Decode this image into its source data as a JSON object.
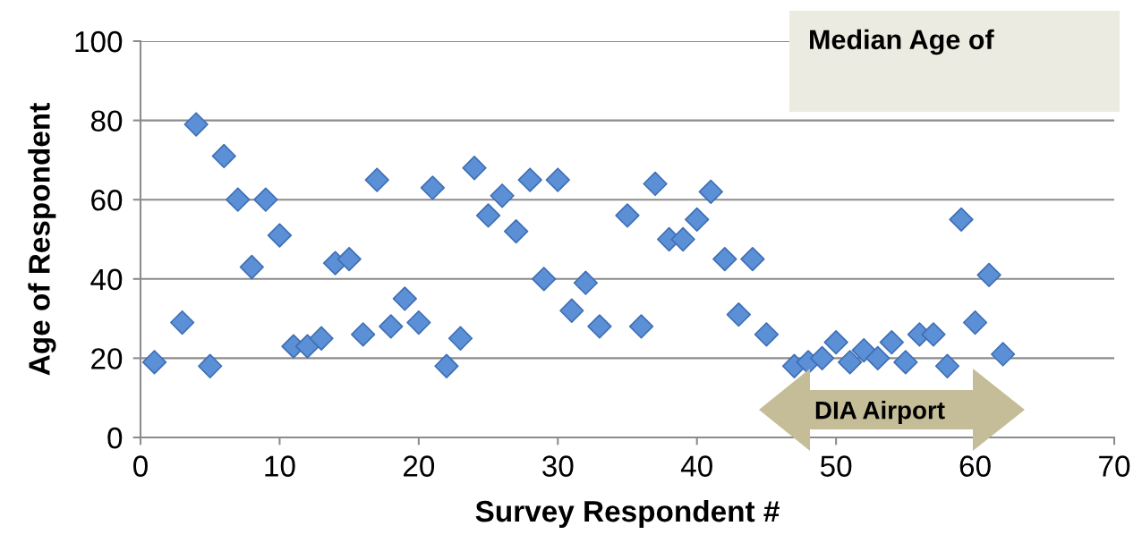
{
  "chart_data": {
    "type": "scatter",
    "xlabel": "Survey Respondent #",
    "ylabel": "Age of Respondent",
    "x": [
      1,
      3,
      4,
      5,
      6,
      7,
      8,
      9,
      10,
      11,
      12,
      13,
      14,
      15,
      16,
      17,
      18,
      19,
      20,
      21,
      22,
      23,
      24,
      25,
      26,
      27,
      28,
      29,
      30,
      31,
      32,
      33,
      35,
      36,
      37,
      38,
      39,
      40,
      41,
      42,
      43,
      44,
      45,
      47,
      48,
      49,
      50,
      51,
      52,
      53,
      54,
      55,
      56,
      57,
      58,
      59,
      60,
      61,
      62
    ],
    "series": [
      {
        "color": "#5b8fd6",
        "values": [
          19,
          29,
          79,
          18,
          71,
          60,
          43,
          60,
          51,
          23,
          23,
          25,
          44,
          45,
          26,
          65,
          28,
          35,
          29,
          63,
          18,
          25,
          68,
          56,
          61,
          52,
          65,
          40,
          65,
          32,
          39,
          28,
          56,
          28,
          64,
          50,
          50,
          55,
          62,
          45,
          31,
          45,
          26,
          18,
          19,
          20,
          24,
          19,
          22,
          20,
          24,
          19,
          26,
          26,
          18,
          55,
          29,
          41,
          21
        ]
      }
    ],
    "xlim": [
      0,
      70
    ],
    "xticks": [
      0,
      10,
      20,
      30,
      40,
      50,
      60,
      70
    ],
    "ylim": [
      0,
      100
    ],
    "yticks": [
      0,
      20,
      40,
      60,
      80,
      100
    ],
    "grid": "y",
    "marker": "diamond",
    "legend": false,
    "annotations": [
      "Median Age of",
      "DIA Airport"
    ]
  }
}
